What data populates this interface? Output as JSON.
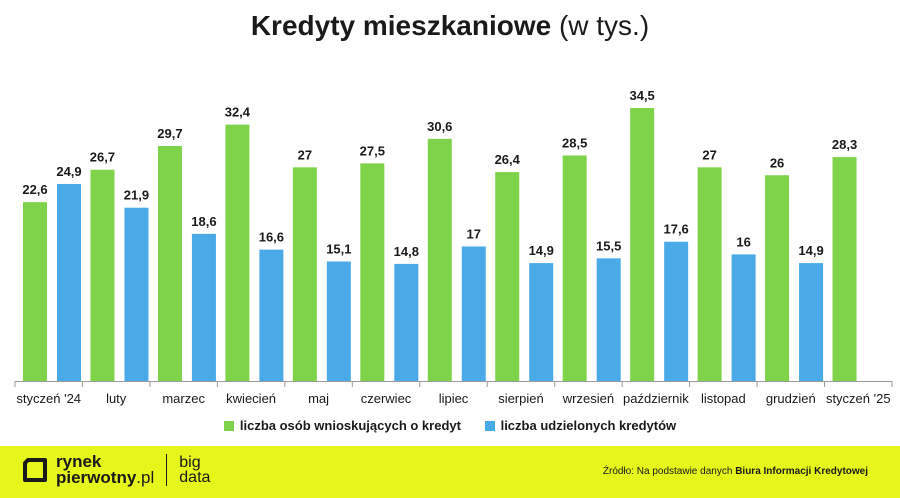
{
  "title": {
    "main": "Kredyty mieszkaniowe",
    "suffix": "(w tys.)"
  },
  "colors": {
    "applications": "#7ed34a",
    "granted": "#4aaae8",
    "footer": "#e6f51a",
    "text": "#1a1a1a"
  },
  "chart_data": {
    "type": "bar",
    "categories": [
      "styczeń '24",
      "luty",
      "marzec",
      "kwiecień",
      "maj",
      "czerwiec",
      "lipiec",
      "sierpień",
      "wrzesień",
      "październik",
      "listopad",
      "grudzień",
      "styczeń '25"
    ],
    "series": [
      {
        "name": "liczba osób wnioskujących o kredyt",
        "values": [
          22.6,
          26.7,
          29.7,
          32.4,
          27,
          27.5,
          30.6,
          26.4,
          28.5,
          34.5,
          27,
          26,
          28.3
        ],
        "labels": [
          "22,6",
          "26,7",
          "29,7",
          "32,4",
          "27",
          "27,5",
          "30,6",
          "26,4",
          "28,5",
          "34,5",
          "27",
          "26",
          "28,3"
        ]
      },
      {
        "name": "liczba udzielonych kredytów",
        "values": [
          24.9,
          21.9,
          18.6,
          16.6,
          15.1,
          14.8,
          17,
          14.9,
          15.5,
          17.6,
          16,
          14.9,
          null
        ],
        "labels": [
          "24,9",
          "21,9",
          "18,6",
          "16,6",
          "15,1",
          "14,8",
          "17",
          "14,9",
          "15,5",
          "17,6",
          "16",
          "14,9",
          null
        ]
      }
    ],
    "ylim": [
      0,
      34.5
    ],
    "grid": false,
    "legend": "bottom"
  },
  "footer": {
    "logo_line1": "rynek",
    "logo_line2a": "pierwotny",
    "logo_line2b": ".pl",
    "brand2_line1": "big",
    "brand2_line2": "data",
    "source_prefix": "Źródło: Na podstawie danych",
    "source_bold": "Biura Informacji Kredytowej"
  }
}
